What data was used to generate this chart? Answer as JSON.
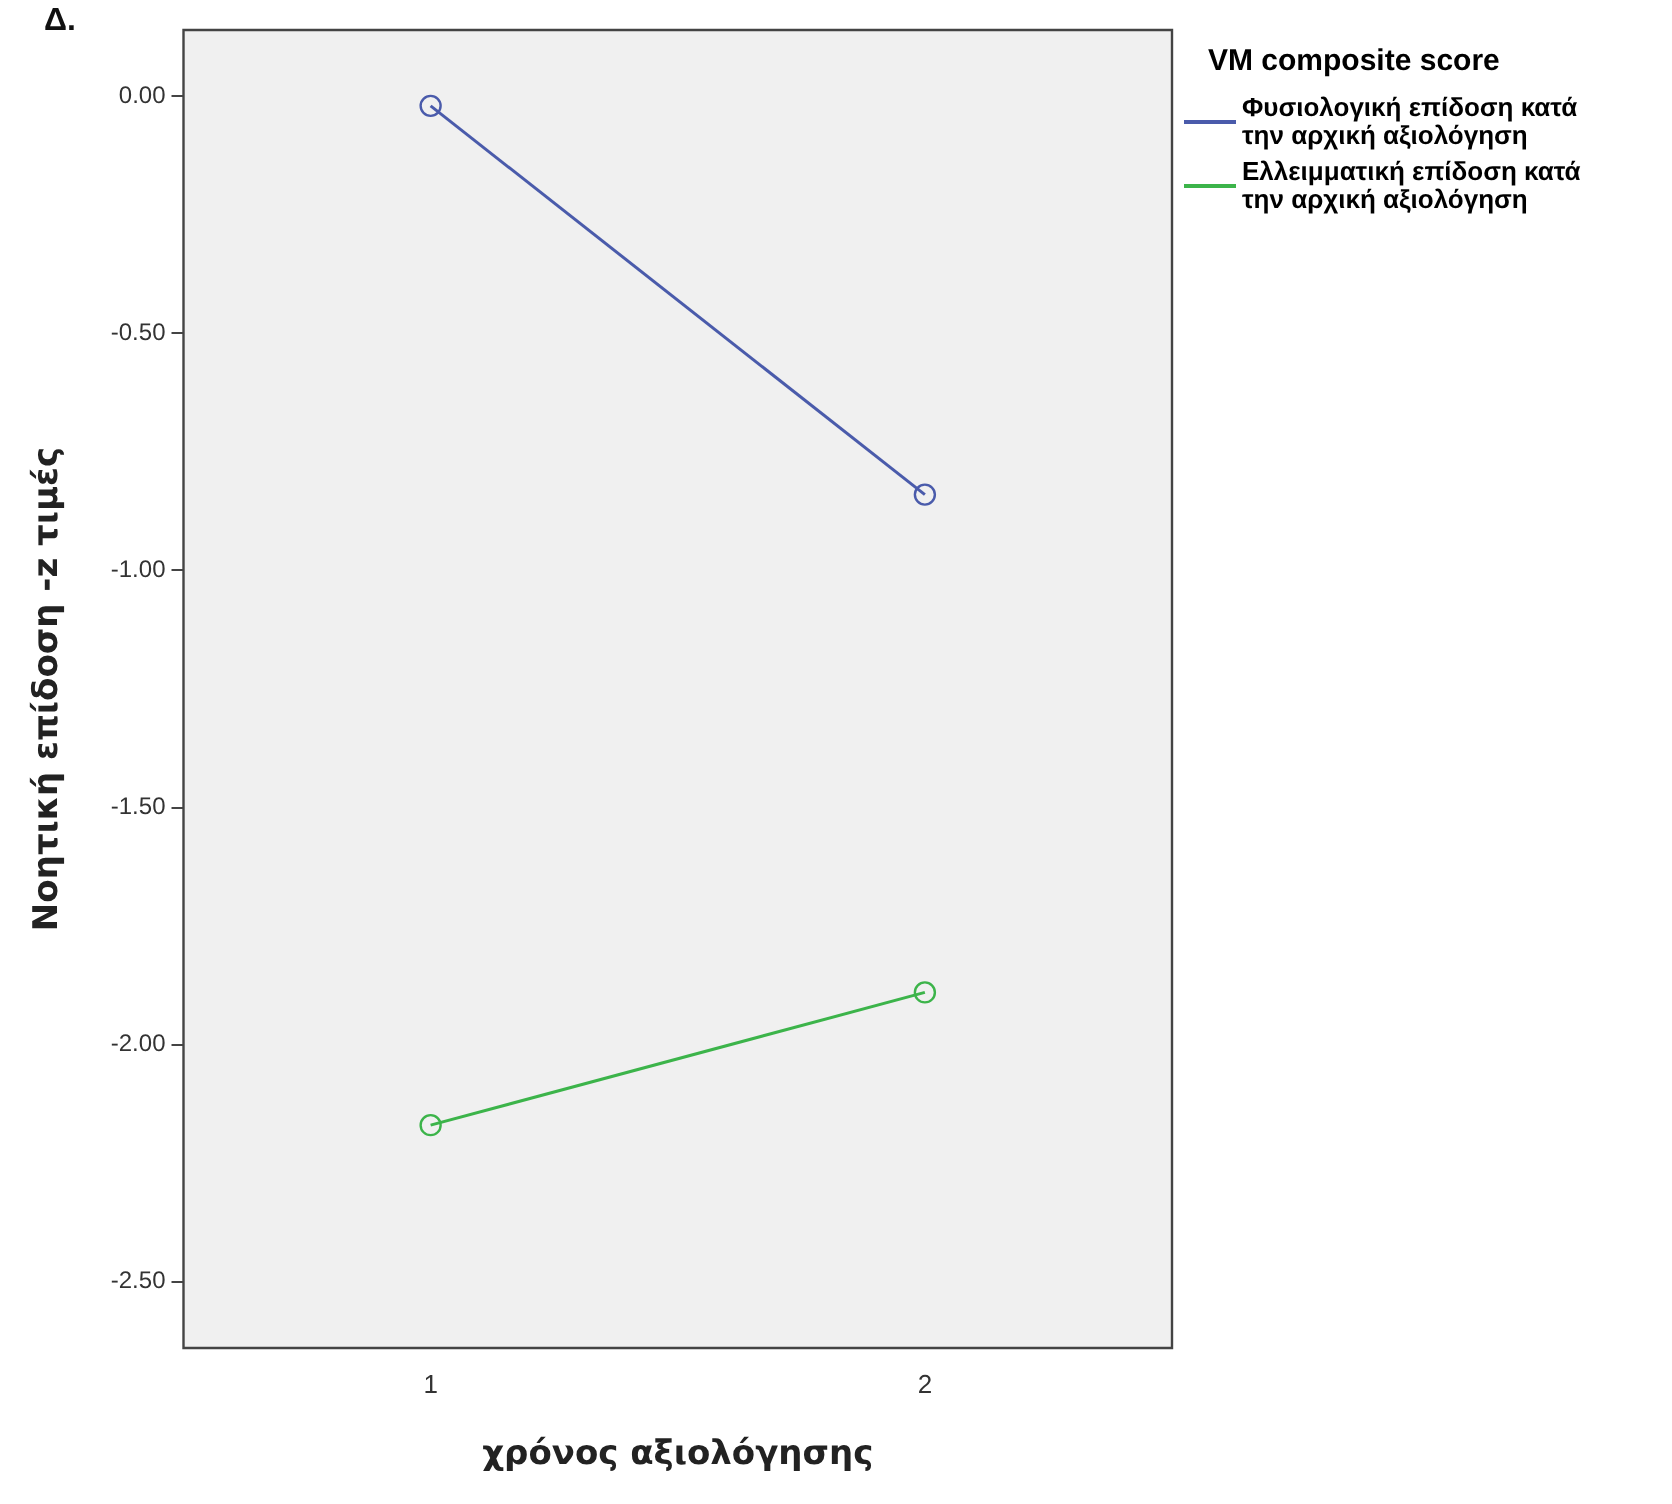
{
  "chart_data": {
    "type": "line",
    "annotations": [
      "Δ."
    ],
    "xlabel": "χρόνος αξιολόγησης",
    "ylabel": "Νοητική επίδοση -z τιμές",
    "legend_title": "VM composite score",
    "categories": [
      "1",
      "2"
    ],
    "series": [
      {
        "name": "Φυσιολογική επίδοση κατά την αρχική αξιολόγηση",
        "color": "#4a5bab",
        "values": [
          -0.02,
          -0.84
        ]
      },
      {
        "name": "Ελλειμματική επίδοση κατά την αρχική αξιολόγηση",
        "color": "#3cb44a",
        "values": [
          -2.17,
          -1.89
        ]
      }
    ],
    "ylim": [
      -2.64,
      0.14
    ],
    "yticks": [
      {
        "value": 0,
        "label": "0.00"
      },
      {
        "value": -0.5,
        "label": "-0.50"
      },
      {
        "value": -1,
        "label": "-1.00"
      },
      {
        "value": -1.5,
        "label": "-1.50"
      },
      {
        "value": -2,
        "label": "-2.00"
      },
      {
        "value": -2.5,
        "label": "-2.50"
      }
    ],
    "grid": false,
    "legend": "top right",
    "marker": "circle",
    "line_style": "solid"
  }
}
